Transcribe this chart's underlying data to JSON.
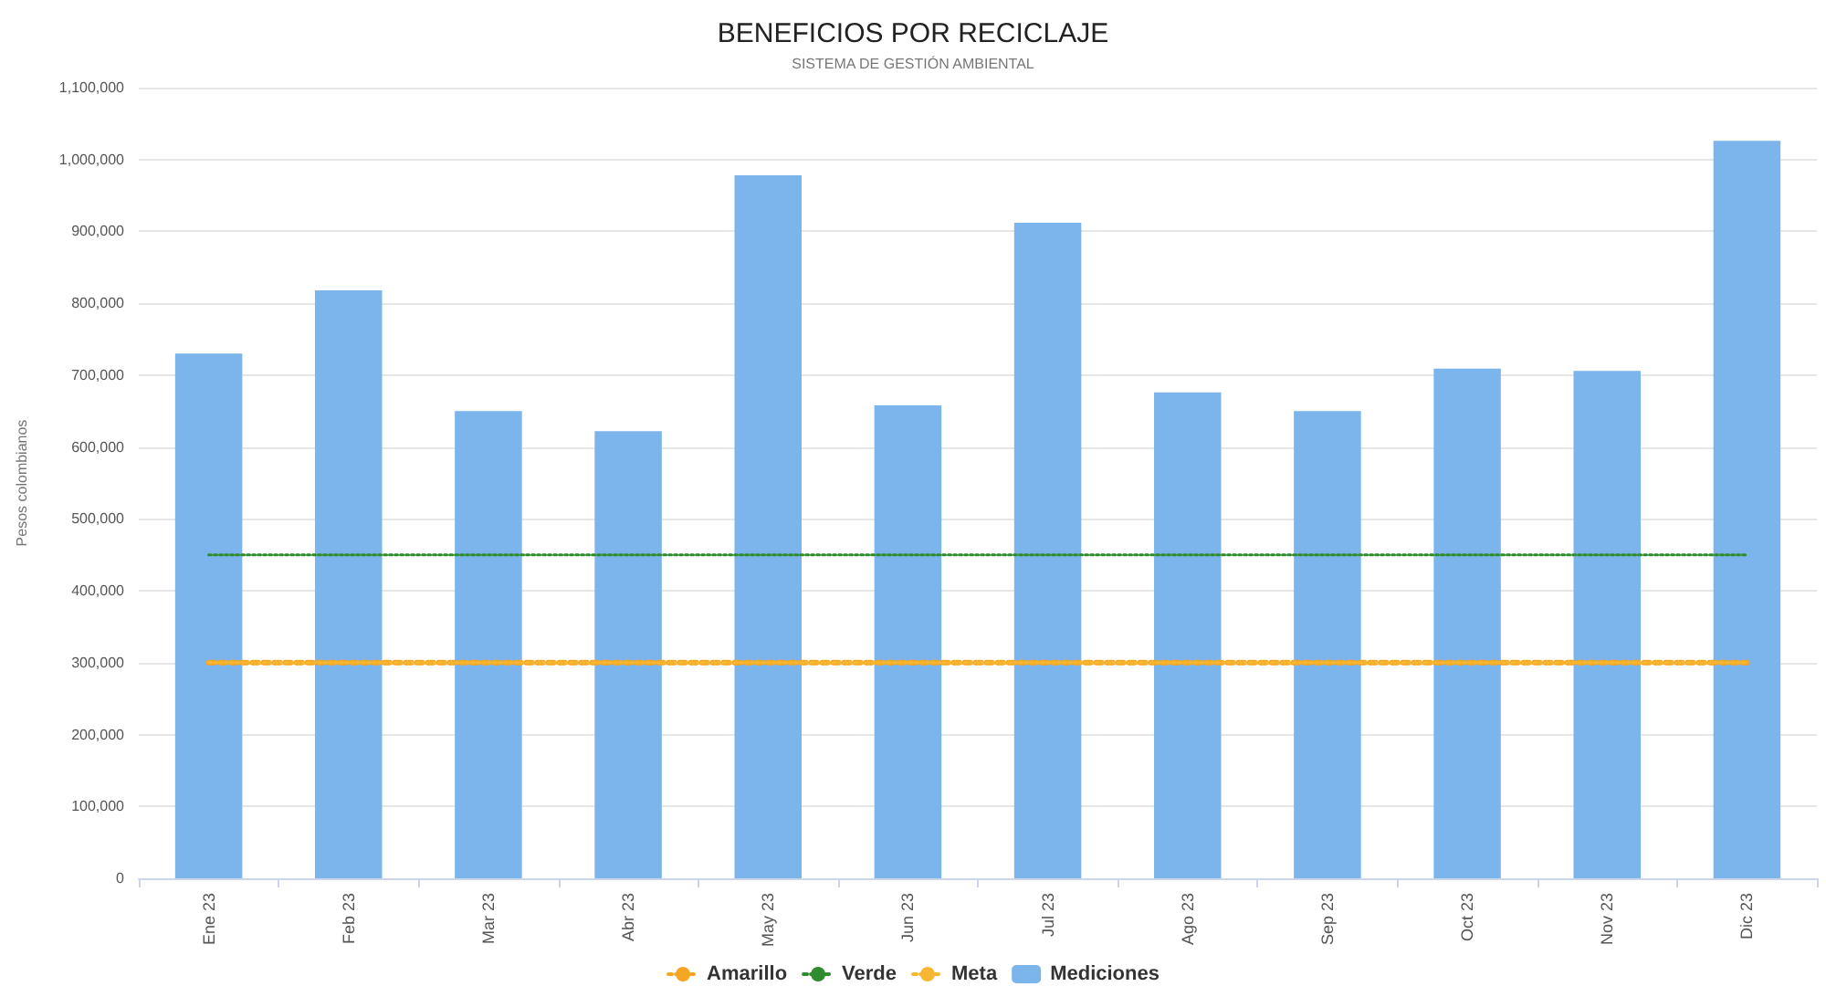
{
  "chart_data": {
    "type": "bar",
    "title": "BENEFICIOS POR RECICLAJE",
    "subtitle": "SISTEMA DE GESTIÓN AMBIENTAL",
    "ylabel": "Pesos colombianos",
    "categories": [
      "Ene 23",
      "Feb 23",
      "Mar 23",
      "Abr 23",
      "May 23",
      "Jun 23",
      "Jul 23",
      "Ago 23",
      "Sep 23",
      "Oct 23",
      "Nov 23",
      "Dic 23"
    ],
    "series": [
      {
        "name": "Amarillo",
        "type": "line",
        "color": "#f5a623",
        "line_style": "dotted",
        "marker": "none",
        "values": [
          300000,
          300000,
          300000,
          300000,
          300000,
          300000,
          300000,
          300000,
          300000,
          300000,
          300000,
          300000
        ]
      },
      {
        "name": "Verde",
        "type": "line",
        "color": "#2e8b2e",
        "line_style": "dotted",
        "marker": "none",
        "values": [
          450000,
          450000,
          450000,
          450000,
          450000,
          450000,
          450000,
          450000,
          450000,
          450000,
          450000,
          450000
        ]
      },
      {
        "name": "Meta",
        "type": "line",
        "color": "#f7b733",
        "line_style": "dotted",
        "marker": "none",
        "values": [
          300000,
          300000,
          300000,
          300000,
          300000,
          300000,
          300000,
          300000,
          300000,
          300000,
          300000,
          300000
        ]
      },
      {
        "name": "Mediciones",
        "color": "#7cb5ec",
        "values": [
          730000,
          818000,
          650000,
          622000,
          978000,
          658000,
          912000,
          676000,
          650000,
          709000,
          706000,
          1026000
        ]
      }
    ],
    "ylim": [
      0,
      1100000
    ],
    "yticks": [
      {
        "value": 0,
        "label": "0"
      },
      {
        "value": 100000,
        "label": "100,000"
      },
      {
        "value": 200000,
        "label": "200,000"
      },
      {
        "value": 300000,
        "label": "300,000"
      },
      {
        "value": 400000,
        "label": "400,000"
      },
      {
        "value": 500000,
        "label": "500,000"
      },
      {
        "value": 600000,
        "label": "600,000"
      },
      {
        "value": 700000,
        "label": "700,000"
      },
      {
        "value": 800000,
        "label": "800,000"
      },
      {
        "value": 900000,
        "label": "900,000"
      },
      {
        "value": 1000000,
        "label": "1,000,000"
      },
      {
        "value": 1100000,
        "label": "1,100,000"
      }
    ],
    "grid": "y",
    "legend": "bottom"
  }
}
